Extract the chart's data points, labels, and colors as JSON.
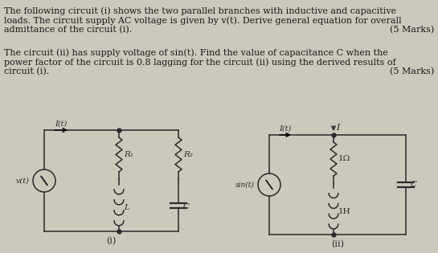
{
  "bg_color": "#ccc8bc",
  "text_color": "#1a1a1a",
  "line_color": "#2a2a2a",
  "text1_line1": "The following circuit (i) shows the two parallel branches with inductive and capacitive",
  "text1_line2": "loads. The circuit supply AC voltage is given by v(t). Derive general equation for overall",
  "text1_line3": "admittance of the circuit (i).",
  "marks1": "(5 Marks)",
  "text2_line1": "The circuit (ii) has supply voltage of sin(t). Find the value of capacitance C when the",
  "text2_line2": "power factor of the circuit is 0.8 lagging for the circuit (ii) using the derived results of",
  "text2_line3": "circuit (i).",
  "marks2": "(5 Marks)",
  "circuit1_label": "(i)",
  "circuit2_label": "(ii)",
  "font_size": 8.0
}
